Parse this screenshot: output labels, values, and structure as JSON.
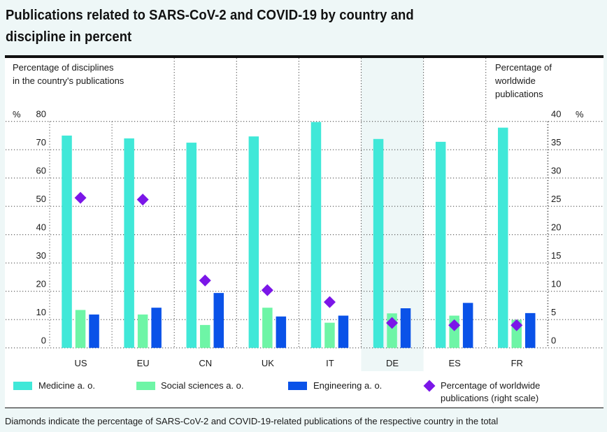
{
  "title": "Publications related to SARS-CoV-2 and COVID-19 by country and discipline in percent",
  "footer": "Diamonds indicate the percentage of SARS-CoV-2 and COVID-19-related publications of the respective country in the total",
  "colors": {
    "medicine": "#40e8d8",
    "social": "#6ef5a6",
    "engineering": "#0a52e8",
    "diamond": "#7b16e8",
    "highlight": "#eef7f7"
  },
  "legend": {
    "medicine": "Medicine a. o.",
    "social": "Social sciences a. o.",
    "engineering": "Engineering a. o.",
    "diamond_line1": "Percentage of worldwide",
    "diamond_line2": "publications (right scale)"
  },
  "chart_data": {
    "type": "bar",
    "title": "Publications related to SARS-CoV-2 and COVID-19 by country and discipline in percent",
    "left_axis": {
      "label_line1": "Percentage of disciplines",
      "label_line2": "in the country's publications",
      "unit": "%",
      "range": [
        0,
        80
      ],
      "ticks": [
        "0",
        "10",
        "20",
        "30",
        "40",
        "50",
        "60",
        "70",
        "80"
      ]
    },
    "right_axis": {
      "label_line1": "Percentage of",
      "label_line2": "worldwide",
      "label_line3": "publications",
      "unit": "%",
      "range": [
        0,
        40
      ],
      "ticks": [
        "0",
        "5",
        "10",
        "15",
        "20",
        "25",
        "30",
        "35",
        "40"
      ]
    },
    "categories": [
      "US",
      "EU",
      "CN",
      "UK",
      "IT",
      "DE",
      "ES",
      "FR"
    ],
    "highlighted_category": "DE",
    "series": [
      {
        "name": "Medicine a. o.",
        "key": "medicine",
        "axis": "left",
        "values": [
          75,
          74,
          72.5,
          74.7,
          79.8,
          73.8,
          72.8,
          77.8
        ]
      },
      {
        "name": "Social sciences a. o.",
        "key": "social",
        "axis": "left",
        "values": [
          13.4,
          11.8,
          8.1,
          14.2,
          8.9,
          12.2,
          11.4,
          9.9
        ]
      },
      {
        "name": "Engineering a. o.",
        "key": "engineering",
        "axis": "left",
        "values": [
          11.8,
          14.2,
          19.4,
          11.1,
          11.4,
          14.0,
          15.9,
          12.3
        ]
      },
      {
        "name": "Percentage of worldwide publications (right scale)",
        "key": "diamond",
        "axis": "right",
        "values": [
          26.5,
          26.2,
          11.9,
          10.2,
          8.1,
          4.4,
          4.0,
          4.0
        ]
      }
    ],
    "grid": true,
    "legend_position": "bottom"
  }
}
